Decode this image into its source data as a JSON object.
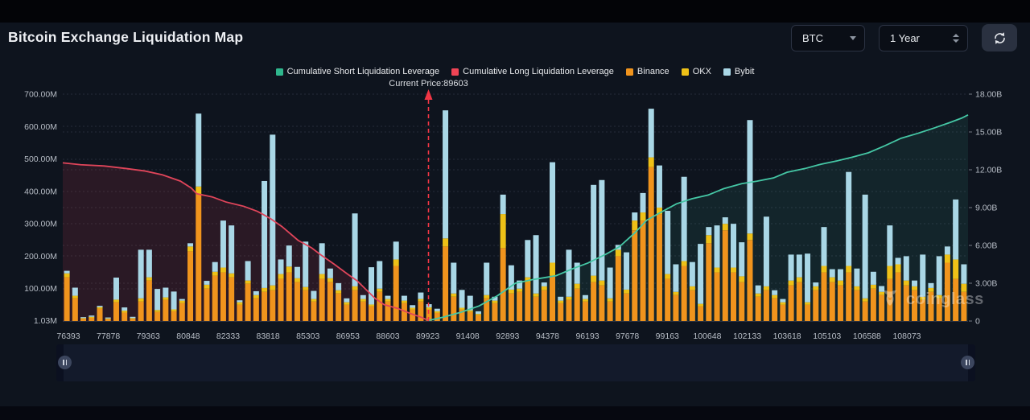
{
  "header": {
    "title": "Bitcoin Exchange Liquidation Map"
  },
  "controls": {
    "symbol_select": {
      "value": "BTC"
    },
    "range_select": {
      "value": "1 Year"
    },
    "refresh": {
      "name": "refresh"
    }
  },
  "legend": {
    "items": [
      {
        "label": "Cumulative Short Liquidation Leverage",
        "color": "#2fb78d"
      },
      {
        "label": "Cumulative Long Liquidation Leverage",
        "color": "#ef4455"
      },
      {
        "label": "Binance",
        "color": "#f0941d"
      },
      {
        "label": "OKX",
        "color": "#eec117"
      },
      {
        "label": "Bybit",
        "color": "#a9d7e6"
      }
    ]
  },
  "annotation": {
    "current_price_label": "Current Price:89603",
    "current_price_value": 89603
  },
  "watermark": {
    "text": "coinglass"
  },
  "chart_data": {
    "type": "mixed",
    "title": "Bitcoin Exchange Liquidation Map",
    "left_axis": {
      "unit": "M",
      "max": 700,
      "ticks": [
        {
          "label": "700.00M",
          "value": 700
        },
        {
          "label": "600.00M",
          "value": 600
        },
        {
          "label": "500.00M",
          "value": 500
        },
        {
          "label": "400.00M",
          "value": 400
        },
        {
          "label": "300.00M",
          "value": 300
        },
        {
          "label": "200.00M",
          "value": 200
        },
        {
          "label": "100.00M",
          "value": 100
        },
        {
          "label": "1.03M",
          "value": 1.03
        }
      ]
    },
    "right_axis": {
      "unit": "B",
      "max": 18,
      "ticks": [
        {
          "label": "18.00B",
          "value": 18
        },
        {
          "label": "15.00B",
          "value": 15
        },
        {
          "label": "12.00B",
          "value": 12
        },
        {
          "label": "9.00B",
          "value": 9
        },
        {
          "label": "6.00B",
          "value": 6
        },
        {
          "label": "3.00B",
          "value": 3
        },
        {
          "label": "0",
          "value": 0
        }
      ]
    },
    "x_labels": [
      "76393",
      "77878",
      "79363",
      "80848",
      "82333",
      "83818",
      "85303",
      "86953",
      "88603",
      "89923",
      "91408",
      "92893",
      "94378",
      "96193",
      "97678",
      "99163",
      "100648",
      "102133",
      "103618",
      "105103",
      "106588",
      "108073"
    ],
    "current_price": {
      "frac": 0.404
    },
    "bar_series_order": [
      "Binance",
      "OKX",
      "Bybit"
    ],
    "bars_unit": "M",
    "bars": [
      [
        135,
        12,
        8
      ],
      [
        70,
        8,
        25
      ],
      [
        7,
        2,
        3
      ],
      [
        10,
        3,
        4
      ],
      [
        38,
        5,
        4
      ],
      [
        6,
        2,
        3
      ],
      [
        58,
        8,
        68
      ],
      [
        26,
        6,
        10
      ],
      [
        7,
        2,
        4
      ],
      [
        60,
        10,
        150
      ],
      [
        125,
        10,
        85
      ],
      [
        28,
        6,
        65
      ],
      [
        65,
        8,
        30
      ],
      [
        30,
        6,
        55
      ],
      [
        55,
        8,
        5
      ],
      [
        215,
        15,
        10
      ],
      [
        390,
        25,
        225
      ],
      [
        100,
        12,
        12
      ],
      [
        140,
        12,
        30
      ],
      [
        150,
        15,
        145
      ],
      [
        135,
        12,
        148
      ],
      [
        50,
        8,
        6
      ],
      [
        115,
        10,
        60
      ],
      [
        70,
        10,
        12
      ],
      [
        90,
        12,
        330
      ],
      [
        95,
        15,
        465
      ],
      [
        130,
        15,
        45
      ],
      [
        150,
        18,
        65
      ],
      [
        120,
        12,
        35
      ],
      [
        95,
        10,
        140
      ],
      [
        60,
        8,
        25
      ],
      [
        130,
        15,
        95
      ],
      [
        120,
        12,
        30
      ],
      [
        85,
        10,
        22
      ],
      [
        50,
        8,
        12
      ],
      [
        95,
        12,
        225
      ],
      [
        60,
        8,
        12
      ],
      [
        45,
        6,
        115
      ],
      [
        90,
        10,
        85
      ],
      [
        60,
        8,
        10
      ],
      [
        170,
        20,
        55
      ],
      [
        55,
        8,
        15
      ],
      [
        35,
        6,
        8
      ],
      [
        60,
        8,
        20
      ],
      [
        36,
        6,
        10
      ],
      [
        25,
        5,
        8
      ],
      [
        230,
        25,
        395
      ],
      [
        75,
        10,
        95
      ],
      [
        35,
        6,
        55
      ],
      [
        28,
        5,
        45
      ],
      [
        18,
        4,
        8
      ],
      [
        70,
        10,
        100
      ],
      [
        55,
        8,
        12
      ],
      [
        225,
        105,
        60
      ],
      [
        85,
        12,
        75
      ],
      [
        90,
        10,
        25
      ],
      [
        120,
        15,
        115
      ],
      [
        75,
        10,
        180
      ],
      [
        95,
        12,
        12
      ],
      [
        140,
        40,
        310
      ],
      [
        55,
        8,
        12
      ],
      [
        65,
        10,
        145
      ],
      [
        100,
        15,
        65
      ],
      [
        60,
        8,
        12
      ],
      [
        120,
        20,
        280
      ],
      [
        110,
        15,
        310
      ],
      [
        60,
        10,
        95
      ],
      [
        200,
        20,
        15
      ],
      [
        85,
        12,
        115
      ],
      [
        280,
        30,
        25
      ],
      [
        310,
        25,
        60
      ],
      [
        475,
        30,
        150
      ],
      [
        330,
        20,
        130
      ],
      [
        130,
        15,
        195
      ],
      [
        80,
        10,
        85
      ],
      [
        170,
        15,
        260
      ],
      [
        95,
        12,
        75
      ],
      [
        45,
        8,
        185
      ],
      [
        240,
        25,
        25
      ],
      [
        150,
        15,
        130
      ],
      [
        280,
        20,
        20
      ],
      [
        150,
        15,
        135
      ],
      [
        120,
        18,
        105
      ],
      [
        250,
        20,
        350
      ],
      [
        75,
        10,
        25
      ],
      [
        95,
        12,
        215
      ],
      [
        70,
        10,
        15
      ],
      [
        50,
        8,
        10
      ],
      [
        110,
        15,
        80
      ],
      [
        120,
        15,
        70
      ],
      [
        50,
        8,
        150
      ],
      [
        95,
        12,
        12
      ],
      [
        150,
        20,
        120
      ],
      [
        120,
        15,
        25
      ],
      [
        110,
        15,
        35
      ],
      [
        150,
        20,
        290
      ],
      [
        95,
        12,
        55
      ],
      [
        60,
        10,
        320
      ],
      [
        100,
        12,
        40
      ],
      [
        80,
        10,
        18
      ],
      [
        130,
        40,
        125
      ],
      [
        150,
        25,
        20
      ],
      [
        110,
        15,
        75
      ],
      [
        95,
        12,
        18
      ],
      [
        65,
        10,
        130
      ],
      [
        90,
        12,
        15
      ],
      [
        70,
        10,
        120
      ],
      [
        180,
        25,
        25
      ],
      [
        130,
        60,
        185
      ],
      [
        90,
        25,
        60
      ]
    ],
    "long_line_unit": "B",
    "long_line": [
      [
        0,
        12.55
      ],
      [
        0.02,
        12.4
      ],
      [
        0.046,
        12.3
      ],
      [
        0.07,
        12.1
      ],
      [
        0.091,
        11.9
      ],
      [
        0.11,
        11.6
      ],
      [
        0.13,
        11.1
      ],
      [
        0.142,
        10.55
      ],
      [
        0.148,
        10.1
      ],
      [
        0.165,
        9.85
      ],
      [
        0.18,
        9.45
      ],
      [
        0.2,
        9.1
      ],
      [
        0.215,
        8.7
      ],
      [
        0.224,
        8.35
      ],
      [
        0.23,
        8.1
      ],
      [
        0.242,
        7.5
      ],
      [
        0.26,
        6.4
      ],
      [
        0.275,
        5.8
      ],
      [
        0.286,
        5.2
      ],
      [
        0.3,
        4.5
      ],
      [
        0.315,
        3.7
      ],
      [
        0.325,
        3.2
      ],
      [
        0.335,
        2.5
      ],
      [
        0.345,
        1.8
      ],
      [
        0.355,
        1.3
      ],
      [
        0.37,
        1.0
      ],
      [
        0.384,
        0.6
      ],
      [
        0.396,
        0.3
      ],
      [
        0.404,
        0.05
      ]
    ],
    "short_line_unit": "B",
    "short_line": [
      [
        0.404,
        0.05
      ],
      [
        0.42,
        0.3
      ],
      [
        0.44,
        0.7
      ],
      [
        0.46,
        1.2
      ],
      [
        0.48,
        2.0
      ],
      [
        0.5,
        3.0
      ],
      [
        0.52,
        3.3
      ],
      [
        0.545,
        3.6
      ],
      [
        0.565,
        4.2
      ],
      [
        0.58,
        4.6
      ],
      [
        0.6,
        5.3
      ],
      [
        0.615,
        5.9
      ],
      [
        0.632,
        7.0
      ],
      [
        0.645,
        8.0
      ],
      [
        0.66,
        8.6
      ],
      [
        0.678,
        9.3
      ],
      [
        0.695,
        9.7
      ],
      [
        0.713,
        10.0
      ],
      [
        0.73,
        10.5
      ],
      [
        0.75,
        10.9
      ],
      [
        0.767,
        11.1
      ],
      [
        0.785,
        11.35
      ],
      [
        0.8,
        11.8
      ],
      [
        0.82,
        12.1
      ],
      [
        0.838,
        12.45
      ],
      [
        0.855,
        12.7
      ],
      [
        0.872,
        13.0
      ],
      [
        0.89,
        13.35
      ],
      [
        0.908,
        13.9
      ],
      [
        0.926,
        14.5
      ],
      [
        0.945,
        14.9
      ],
      [
        0.962,
        15.3
      ],
      [
        0.98,
        15.75
      ],
      [
        0.993,
        16.1
      ],
      [
        1,
        16.35
      ]
    ],
    "colors": {
      "binance": "#f0941d",
      "okx": "#eec117",
      "bybit": "#a9d7e6",
      "short_line": "#45c7a5",
      "short_fill": "rgba(69,199,165,0.10)",
      "long_line": "#e0455a",
      "long_fill": "rgba(214,60,85,0.14)",
      "price_line": "#f23645",
      "grid": "#454c5a",
      "axis_text": "#b7bdc6"
    },
    "grid": true,
    "legend_position": "top-center"
  }
}
